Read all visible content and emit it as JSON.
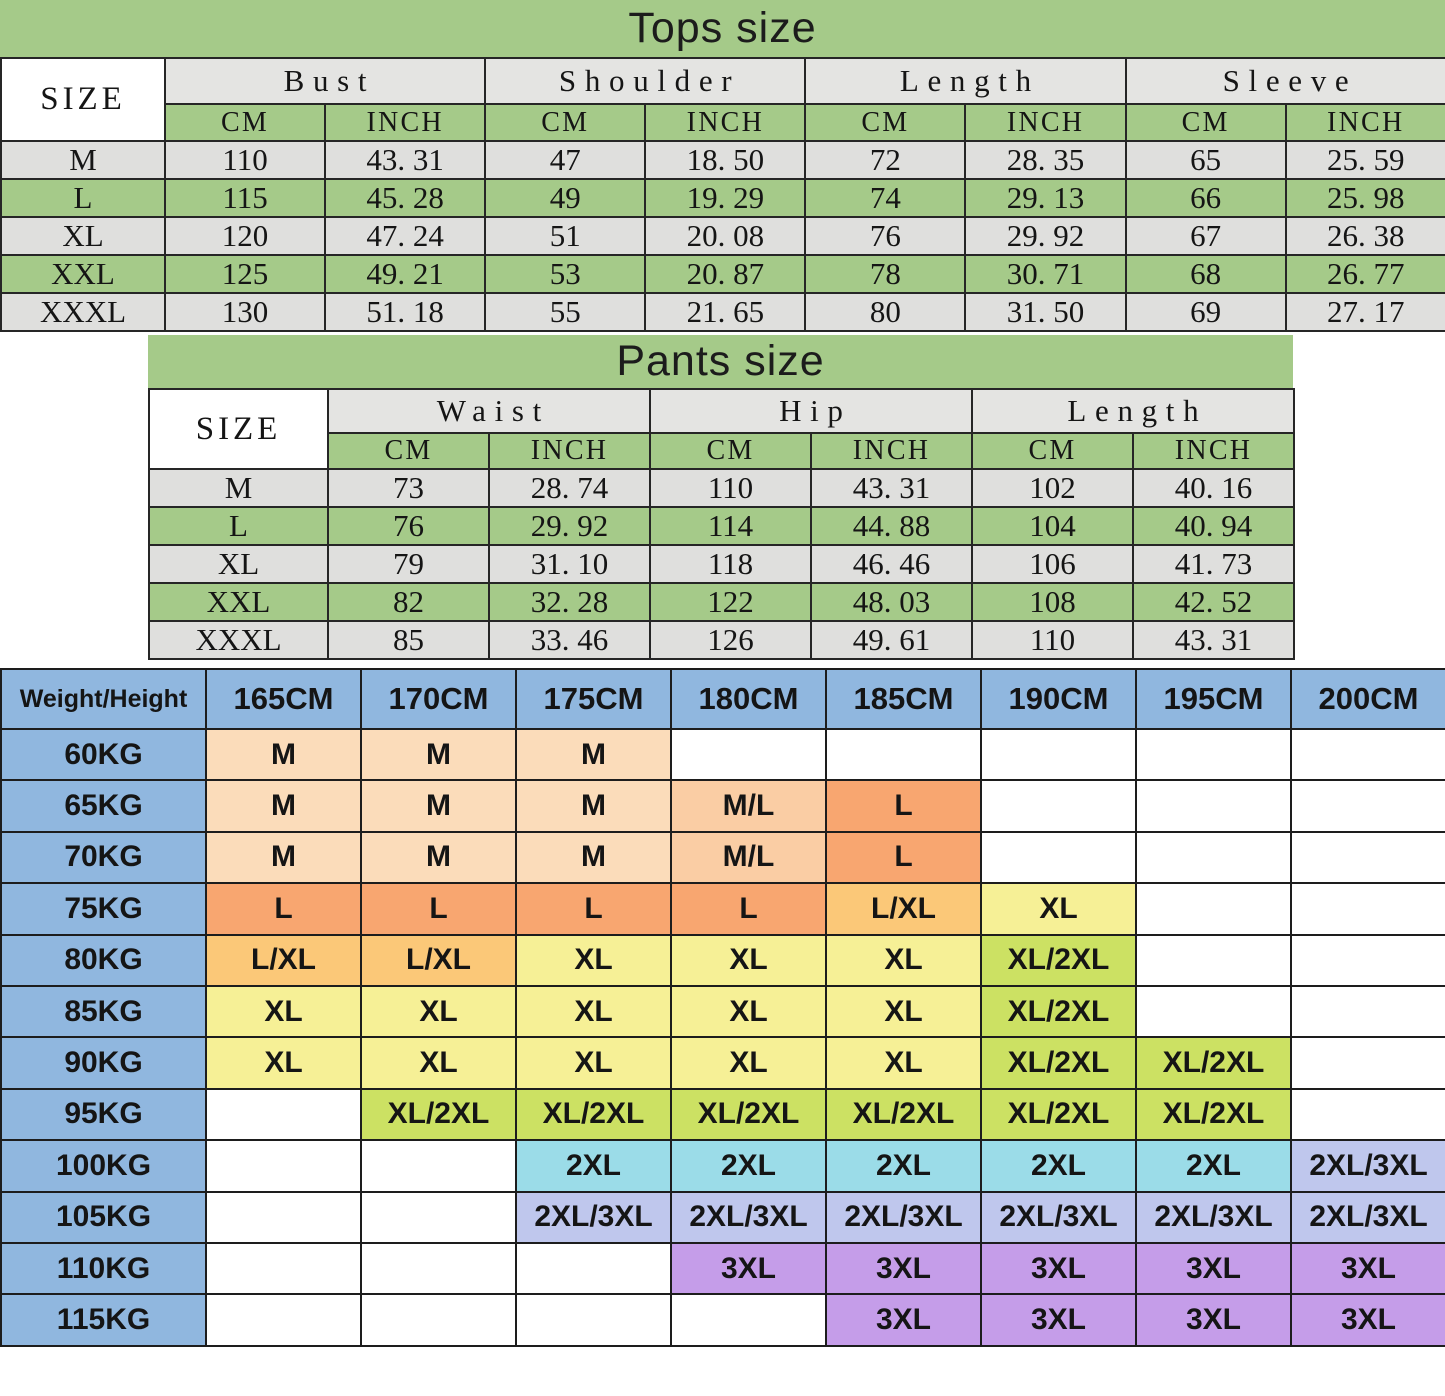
{
  "tops": {
    "title": "Tops size",
    "size_label": "SIZE",
    "sections": [
      "Bust",
      "Shoulder",
      "Length",
      "Sleeve"
    ],
    "unit_labels": [
      "CM",
      "INCH"
    ],
    "rows": [
      {
        "size": "M",
        "values": [
          "110",
          "43. 31",
          "47",
          "18. 50",
          "72",
          "28. 35",
          "65",
          "25. 59"
        ]
      },
      {
        "size": "L",
        "values": [
          "115",
          "45. 28",
          "49",
          "19. 29",
          "74",
          "29. 13",
          "66",
          "25. 98"
        ]
      },
      {
        "size": "XL",
        "values": [
          "120",
          "47. 24",
          "51",
          "20. 08",
          "76",
          "29. 92",
          "67",
          "26. 38"
        ]
      },
      {
        "size": "XXL",
        "values": [
          "125",
          "49. 21",
          "53",
          "20. 87",
          "78",
          "30. 71",
          "68",
          "26. 77"
        ]
      },
      {
        "size": "XXXL",
        "values": [
          "130",
          "51. 18",
          "55",
          "21. 65",
          "80",
          "31. 50",
          "69",
          "27. 17"
        ]
      }
    ]
  },
  "pants": {
    "title": "Pants size",
    "size_label": "SIZE",
    "sections": [
      "Waist",
      "Hip",
      "Length"
    ],
    "unit_labels": [
      "CM",
      "INCH"
    ],
    "rows": [
      {
        "size": "M",
        "values": [
          "73",
          "28. 74",
          "110",
          "43. 31",
          "102",
          "40. 16"
        ]
      },
      {
        "size": "L",
        "values": [
          "76",
          "29. 92",
          "114",
          "44. 88",
          "104",
          "40. 94"
        ]
      },
      {
        "size": "XL",
        "values": [
          "79",
          "31. 10",
          "118",
          "46. 46",
          "106",
          "41. 73"
        ]
      },
      {
        "size": "XXL",
        "values": [
          "82",
          "32. 28",
          "122",
          "48. 03",
          "108",
          "42. 52"
        ]
      },
      {
        "size": "XXXL",
        "values": [
          "85",
          "33. 46",
          "126",
          "49. 61",
          "110",
          "43. 31"
        ]
      }
    ]
  },
  "matrix": {
    "corner_label": "Weight/Height",
    "heights": [
      "165CM",
      "170CM",
      "175CM",
      "180CM",
      "185CM",
      "190CM",
      "195CM",
      "200CM"
    ],
    "rows": [
      {
        "weight": "60KG",
        "cells": [
          "M",
          "M",
          "M",
          "",
          "",
          "",
          "",
          ""
        ]
      },
      {
        "weight": "65KG",
        "cells": [
          "M",
          "M",
          "M",
          "M/L",
          "L",
          "",
          "",
          ""
        ]
      },
      {
        "weight": "70KG",
        "cells": [
          "M",
          "M",
          "M",
          "M/L",
          "L",
          "",
          "",
          ""
        ]
      },
      {
        "weight": "75KG",
        "cells": [
          "L",
          "L",
          "L",
          "L",
          "L/XL",
          "XL",
          "",
          ""
        ]
      },
      {
        "weight": "80KG",
        "cells": [
          "L/XL",
          "L/XL",
          "XL",
          "XL",
          "XL",
          "XL/2XL",
          "",
          ""
        ]
      },
      {
        "weight": "85KG",
        "cells": [
          "XL",
          "XL",
          "XL",
          "XL",
          "XL",
          "XL/2XL",
          "",
          ""
        ]
      },
      {
        "weight": "90KG",
        "cells": [
          "XL",
          "XL",
          "XL",
          "XL",
          "XL",
          "XL/2XL",
          "XL/2XL",
          ""
        ]
      },
      {
        "weight": "95KG",
        "cells": [
          "",
          "XL/2XL",
          "XL/2XL",
          "XL/2XL",
          "XL/2XL",
          "XL/2XL",
          "XL/2XL",
          ""
        ]
      },
      {
        "weight": "100KG",
        "cells": [
          "",
          "",
          "2XL",
          "2XL",
          "2XL",
          "2XL",
          "2XL",
          "2XL/3XL"
        ]
      },
      {
        "weight": "105KG",
        "cells": [
          "",
          "",
          "2XL/3XL",
          "2XL/3XL",
          "2XL/3XL",
          "2XL/3XL",
          "2XL/3XL",
          "2XL/3XL"
        ]
      },
      {
        "weight": "110KG",
        "cells": [
          "",
          "",
          "",
          "3XL",
          "3XL",
          "3XL",
          "3XL",
          "3XL"
        ]
      },
      {
        "weight": "115KG",
        "cells": [
          "",
          "",
          "",
          "",
          "3XL",
          "3XL",
          "3XL",
          "3XL"
        ]
      }
    ],
    "cell_colors": {
      "M": "#FBDCBA",
      "M/L": "#FACDA4",
      "L": "#F8A670",
      "L/XL": "#FBC878",
      "XL": "#F6F096",
      "XL/2XL": "#CCE163",
      "2XL": "#9BDCE8",
      "2XL/3XL": "#BFC7ED",
      "3XL": "#C59DE9",
      "": "#FFFFFF"
    }
  },
  "colors": {
    "table_green": "#A5CA89",
    "header_gray": "#E4E4E2",
    "row_gray": "#DFDFDD",
    "matrix_header_blue": "#90B7DF",
    "grid_line": "#262626"
  }
}
